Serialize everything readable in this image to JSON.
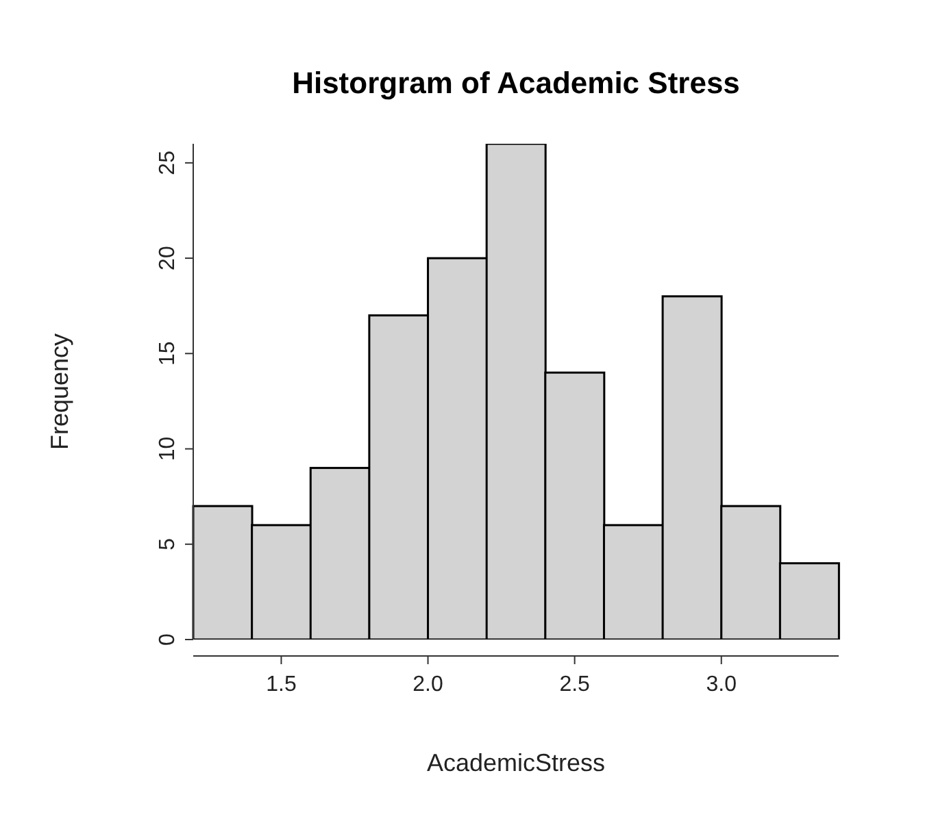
{
  "chart_data": {
    "type": "histogram",
    "title": "Historgram of Academic Stress",
    "xlabel": "AcademicStress",
    "ylabel": "Frequency",
    "bins": [
      1.2,
      1.4,
      1.6,
      1.8,
      2.0,
      2.2,
      2.4,
      2.6,
      2.8,
      3.0,
      3.2,
      3.4
    ],
    "values": [
      7,
      6,
      9,
      17,
      20,
      26,
      14,
      6,
      18,
      7,
      4
    ],
    "color": "#d3d3d3",
    "xlim": [
      1.2,
      3.4
    ],
    "xticks": [
      {
        "value": 1.5,
        "label": "1.5"
      },
      {
        "value": 2,
        "label": "2.0"
      },
      {
        "value": 2.5,
        "label": "2.5"
      },
      {
        "value": 3,
        "label": "3.0"
      }
    ],
    "ylim": [
      0,
      26
    ],
    "yticks": [
      0,
      5,
      10,
      15,
      20,
      25
    ]
  }
}
